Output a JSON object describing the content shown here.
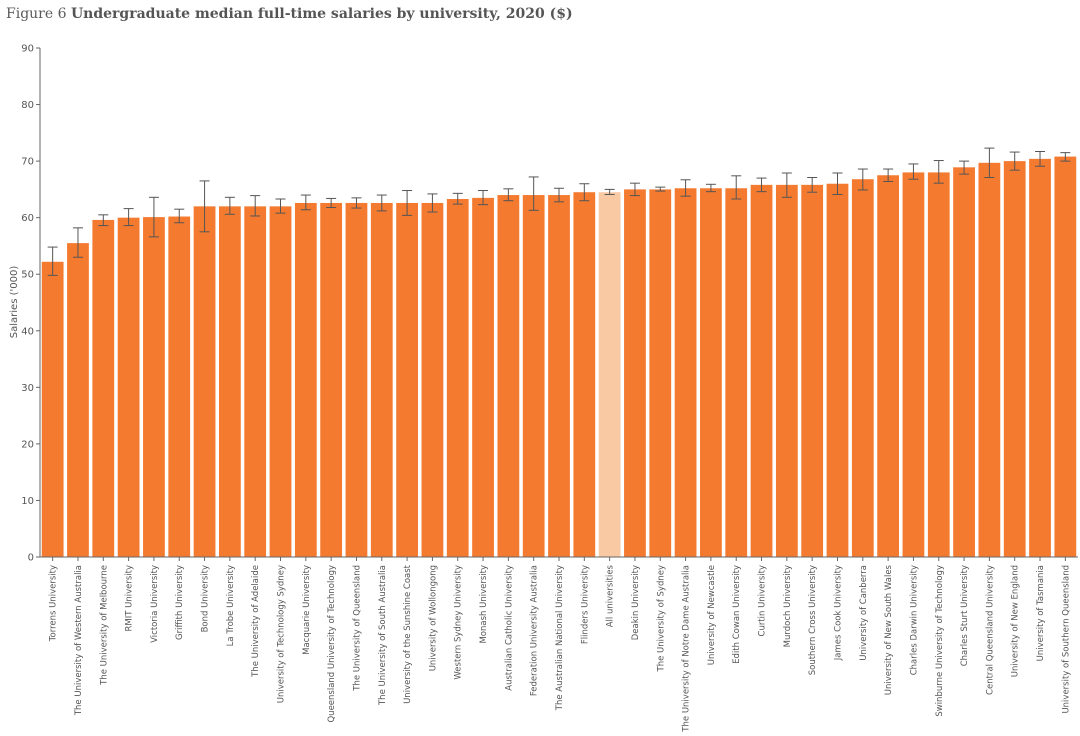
{
  "figure": {
    "label": "Figure 6",
    "title": "Undergraduate median full-time salaries by university, 2020 ($)"
  },
  "colors": {
    "bar": "#f47a2f",
    "highlight_bar": "#f9c9a4",
    "axis": "#666666",
    "error_bar": "#555555"
  },
  "chart_data": {
    "type": "bar",
    "title": "Undergraduate median full-time salaries by university, 2020 ($)",
    "xlabel": "",
    "ylabel": "Salaries ('000)",
    "ylim": [
      0,
      90
    ],
    "yticks": [
      0,
      10,
      20,
      30,
      40,
      50,
      60,
      70,
      80,
      90
    ],
    "grid": false,
    "highlight_category": "All universities",
    "categories": [
      "Torrens University",
      "The University of Western Australia",
      "The University of Melbourne",
      "RMIT University",
      "Victoria University",
      "Griffith University",
      "Bond University",
      "La Trobe University",
      "The University of Adelaide",
      "University of Technology Sydney",
      "Macquarie University",
      "Queensland University of Technology",
      "The University of Queensland",
      "The University of South Australia",
      "University of the Sunshine Coast",
      "University of Wollongong",
      "Western Sydney University",
      "Monash University",
      "Australian Catholic University",
      "Federation University Australia",
      "The Australian National University",
      "Flinders University",
      "All universities",
      "Deakin University",
      "The University of Sydney",
      "The University of Notre Dame Australia",
      "University of Newcastle",
      "Edith Cowan University",
      "Curtin University",
      "Murdoch University",
      "Southern Cross University",
      "James Cook University",
      "University of Canberra",
      "University of New South Wales",
      "Charles Darwin University",
      "Swinburne University of Technology",
      "Charles Sturt University",
      "Central Queensland University",
      "University of New England",
      "University of Tasmania",
      "University of Southern Queensland"
    ],
    "series": [
      {
        "values": [
          52.2,
          55.5,
          59.6,
          60.0,
          60.1,
          60.2,
          62.0,
          62.0,
          62.0,
          62.0,
          62.6,
          62.6,
          62.6,
          62.6,
          62.6,
          62.6,
          63.3,
          63.5,
          64.0,
          64.0,
          64.0,
          64.5,
          64.5,
          65.0,
          65.0,
          65.2,
          65.2,
          65.2,
          65.8,
          65.8,
          65.8,
          66.0,
          66.8,
          67.5,
          68.0,
          68.0,
          68.9,
          69.7,
          70.0,
          70.4,
          70.8
        ],
        "error_low": [
          49.8,
          53.0,
          58.6,
          58.6,
          56.6,
          59.1,
          57.5,
          60.6,
          60.3,
          60.8,
          61.4,
          61.8,
          61.7,
          61.2,
          60.4,
          61.0,
          62.4,
          62.3,
          63.0,
          61.3,
          62.8,
          63.0,
          64.1,
          63.9,
          64.7,
          63.8,
          64.6,
          63.3,
          64.6,
          63.6,
          64.5,
          64.1,
          64.9,
          66.4,
          66.8,
          66.1,
          67.7,
          67.1,
          68.4,
          69.1,
          70.0
        ],
        "error_high": [
          54.8,
          58.2,
          60.5,
          61.6,
          63.6,
          61.5,
          66.5,
          63.6,
          63.9,
          63.3,
          64.0,
          63.4,
          63.5,
          64.0,
          64.8,
          64.2,
          64.3,
          64.8,
          65.1,
          67.2,
          65.2,
          66.0,
          65.0,
          66.1,
          65.4,
          66.7,
          65.9,
          67.4,
          67.0,
          67.9,
          67.1,
          67.9,
          68.6,
          68.6,
          69.5,
          70.1,
          70.0,
          72.3,
          71.6,
          71.7,
          71.5
        ]
      }
    ]
  }
}
